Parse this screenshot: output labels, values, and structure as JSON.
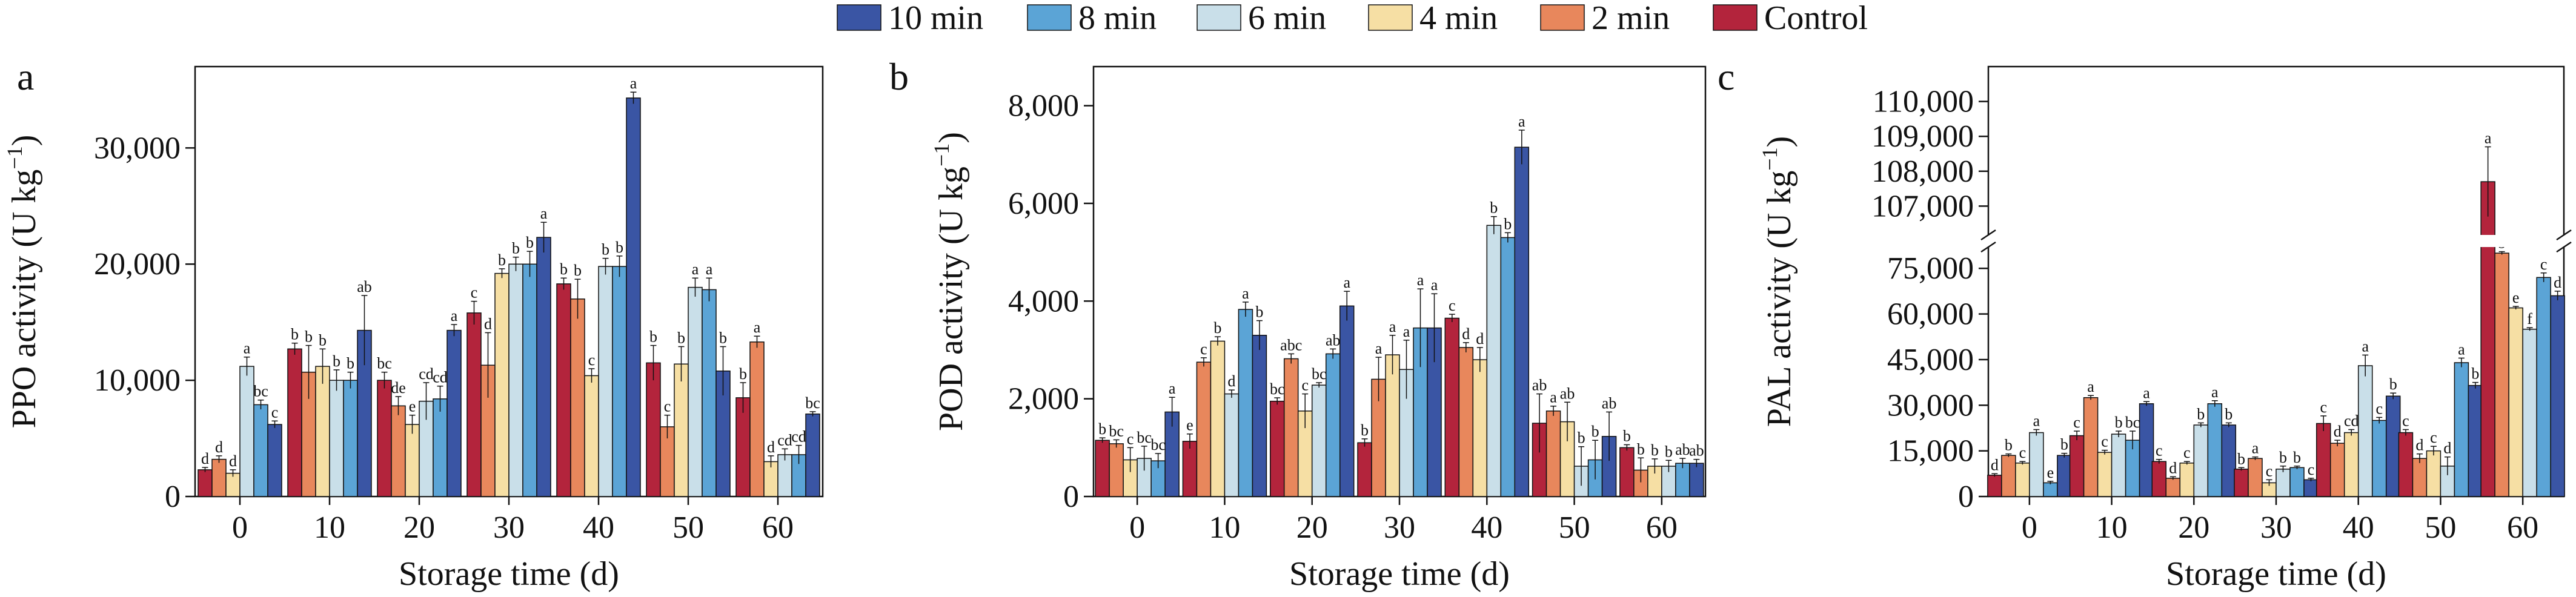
{
  "legend": [
    {
      "key": "t10",
      "label": "10 min",
      "color": "#3a55a4"
    },
    {
      "key": "t8",
      "label": "8 min",
      "color": "#5ba4d6"
    },
    {
      "key": "t6",
      "label": "6 min",
      "color": "#c9dfe9"
    },
    {
      "key": "t4",
      "label": "4 min",
      "color": "#f6dfa4"
    },
    {
      "key": "t2",
      "label": "2 min",
      "color": "#e8875c"
    },
    {
      "key": "ctrl",
      "label": "Control",
      "color": "#b3243c"
    }
  ],
  "series_order": [
    "ctrl",
    "t2",
    "t4",
    "t6",
    "t8",
    "t10"
  ],
  "chart_data": [
    {
      "type": "bar",
      "panel": "a",
      "xlabel": "Storage time (d)",
      "ylabel": "PPO activity (U kg⁻¹)",
      "ylabel_main": "PPO activity (U kg",
      "ylabel_sup": "−1",
      "ylabel_end": ")",
      "categories": [
        "0",
        "10",
        "20",
        "30",
        "40",
        "50",
        "60"
      ],
      "ylim": [
        0,
        37000
      ],
      "yticks": [
        0,
        10000,
        20000,
        30000
      ],
      "ytick_labels": [
        "0",
        "10,000",
        "20,000",
        "30,000"
      ],
      "series": [
        {
          "key": "ctrl",
          "values": [
            2300,
            12700,
            10000,
            15800,
            18300,
            11500,
            8500
          ],
          "errors": [
            200,
            500,
            700,
            1000,
            500,
            1500,
            1300
          ],
          "letters": [
            "d",
            "b",
            "bc",
            "c",
            "b",
            "b",
            "b"
          ]
        },
        {
          "key": "t2",
          "values": [
            3200,
            10700,
            7800,
            11300,
            17000,
            6000,
            13300
          ],
          "errors": [
            300,
            2300,
            800,
            2800,
            1700,
            1000,
            500
          ],
          "letters": [
            "d",
            "b",
            "de",
            "d",
            "b",
            "c",
            "a"
          ]
        },
        {
          "key": "t4",
          "values": [
            2000,
            11200,
            6200,
            19200,
            10400,
            11400,
            3000
          ],
          "errors": [
            300,
            1500,
            800,
            400,
            600,
            1500,
            500
          ],
          "letters": [
            "d",
            "b",
            "e",
            "b",
            "c",
            "b",
            "d"
          ]
        },
        {
          "key": "t6",
          "values": [
            11200,
            10000,
            8200,
            20000,
            19800,
            18000,
            3600
          ],
          "errors": [
            800,
            900,
            1600,
            600,
            700,
            800,
            500
          ],
          "letters": [
            "a",
            "b",
            "cd",
            "b",
            "b",
            "a",
            "cd"
          ]
        },
        {
          "key": "t8",
          "values": [
            7900,
            10000,
            8400,
            20000,
            19800,
            17800,
            3600
          ],
          "errors": [
            400,
            700,
            1100,
            1100,
            900,
            1000,
            800
          ],
          "letters": [
            "bc",
            "b",
            "cd",
            "b",
            "b",
            "a",
            "cd"
          ]
        },
        {
          "key": "t10",
          "values": [
            6200,
            14300,
            14300,
            22300,
            34300,
            10800,
            7100
          ],
          "errors": [
            300,
            3000,
            500,
            1300,
            500,
            2100,
            200
          ],
          "letters": [
            "c",
            "ab",
            "a",
            "a",
            "a",
            "b",
            "bc"
          ]
        }
      ]
    },
    {
      "type": "bar",
      "panel": "b",
      "xlabel": "Storage time (d)",
      "ylabel": "POD activity (U kg⁻¹)",
      "ylabel_main": "POD activity (U kg",
      "ylabel_sup": "−1",
      "ylabel_end": ")",
      "categories": [
        "0",
        "10",
        "20",
        "30",
        "40",
        "50",
        "60"
      ],
      "ylim": [
        0,
        8800
      ],
      "yticks": [
        0,
        2000,
        4000,
        6000,
        8000
      ],
      "ytick_labels": [
        "0",
        "2,000",
        "4,000",
        "6,000",
        "8,000"
      ],
      "series": [
        {
          "key": "ctrl",
          "values": [
            1150,
            1130,
            1950,
            1100,
            3650,
            1500,
            1000
          ],
          "errors": [
            50,
            150,
            70,
            80,
            80,
            600,
            60
          ],
          "letters": [
            "b",
            "e",
            "bc",
            "b",
            "c",
            "ab",
            "b"
          ]
        },
        {
          "key": "t2",
          "values": [
            1080,
            2750,
            2820,
            2400,
            3050,
            1750,
            540
          ],
          "errors": [
            80,
            90,
            100,
            450,
            100,
            100,
            250
          ],
          "letters": [
            "bc",
            "c",
            "abc",
            "a",
            "d",
            "a",
            "b"
          ]
        },
        {
          "key": "t4",
          "values": [
            750,
            3180,
            1750,
            2900,
            2800,
            1530,
            620
          ],
          "errors": [
            250,
            90,
            350,
            400,
            250,
            400,
            150
          ],
          "letters": [
            "c",
            "b",
            "c",
            "a",
            "d",
            "ab",
            "b"
          ]
        },
        {
          "key": "t6",
          "values": [
            780,
            2100,
            2280,
            2600,
            5550,
            620,
            620
          ],
          "errors": [
            250,
            80,
            50,
            600,
            180,
            400,
            120
          ],
          "letters": [
            "bc",
            "d",
            "bc",
            "a",
            "b",
            "b",
            "b"
          ]
        },
        {
          "key": "t8",
          "values": [
            730,
            3830,
            2920,
            3450,
            5300,
            750,
            680
          ],
          "errors": [
            150,
            150,
            100,
            800,
            100,
            400,
            100
          ],
          "letters": [
            "bc",
            "a",
            "ab",
            "a",
            "b",
            "b",
            "ab"
          ]
        },
        {
          "key": "t10",
          "values": [
            1730,
            3300,
            3900,
            3450,
            7150,
            1230,
            680
          ],
          "errors": [
            300,
            300,
            300,
            700,
            350,
            500,
            80
          ],
          "letters": [
            "a",
            "b",
            "a",
            "a",
            "a",
            "ab",
            "ab"
          ]
        }
      ]
    },
    {
      "type": "bar",
      "panel": "c",
      "xlabel": "Storage time (d)",
      "ylabel": "PAL activity (U kg⁻¹)",
      "ylabel_main": "PAL activity (U kg",
      "ylabel_sup": "−1",
      "ylabel_end": ")",
      "categories": [
        "0",
        "10",
        "20",
        "30",
        "40",
        "50",
        "60"
      ],
      "axis_break": {
        "lower_ylim": [
          0,
          84000
        ],
        "upper_ylim": [
          106000,
          111000
        ]
      },
      "yticks_lower": [
        0,
        15000,
        30000,
        45000,
        60000,
        75000
      ],
      "ytick_labels_lower": [
        "0",
        "15,000",
        "30,000",
        "45,000",
        "60,000",
        "75,000"
      ],
      "yticks_upper": [
        107000,
        108000,
        109000,
        110000
      ],
      "ytick_labels_upper": [
        "107,000",
        "108,000",
        "109,000",
        "110,000"
      ],
      "series": [
        {
          "key": "ctrl",
          "values": [
            7000,
            20000,
            11500,
            9000,
            24000,
            21000,
            107700
          ],
          "errors": [
            500,
            1500,
            700,
            500,
            2500,
            1000,
            1000
          ],
          "letters": [
            "d",
            "c",
            "c",
            "b",
            "c",
            "c",
            "a"
          ]
        },
        {
          "key": "t2",
          "values": [
            13500,
            32500,
            6000,
            12500,
            17500,
            12500,
            80000
          ],
          "errors": [
            500,
            700,
            500,
            500,
            1000,
            1500,
            500
          ],
          "letters": [
            "b",
            "a",
            "d",
            "a",
            "d",
            "d",
            "b"
          ]
        },
        {
          "key": "t4",
          "values": [
            11000,
            14500,
            11000,
            4500,
            21000,
            15000,
            62000
          ],
          "errors": [
            500,
            700,
            500,
            1000,
            1000,
            1500,
            500
          ],
          "letters": [
            "c",
            "c",
            "c",
            "c",
            "cd",
            "c",
            "e"
          ]
        },
        {
          "key": "t6",
          "values": [
            21000,
            20500,
            23500,
            9000,
            43000,
            10000,
            55000
          ],
          "errors": [
            1000,
            1000,
            700,
            1000,
            3500,
            3000,
            500
          ],
          "letters": [
            "a",
            "b",
            "b",
            "b",
            "a",
            "d",
            "f"
          ]
        },
        {
          "key": "t8",
          "values": [
            4500,
            18500,
            30500,
            9500,
            25000,
            44000,
            72000
          ],
          "errors": [
            500,
            3000,
            1000,
            500,
            1000,
            1500,
            1500
          ],
          "letters": [
            "e",
            "bc",
            "a",
            "b",
            "c",
            "a",
            "c"
          ]
        },
        {
          "key": "t10",
          "values": [
            13500,
            30500,
            23500,
            5500,
            33000,
            36500,
            66000
          ],
          "errors": [
            700,
            700,
            700,
            500,
            1000,
            1000,
            1500
          ],
          "letters": [
            "b",
            "a",
            "b",
            "c",
            "b",
            "b",
            "d"
          ]
        }
      ]
    }
  ]
}
